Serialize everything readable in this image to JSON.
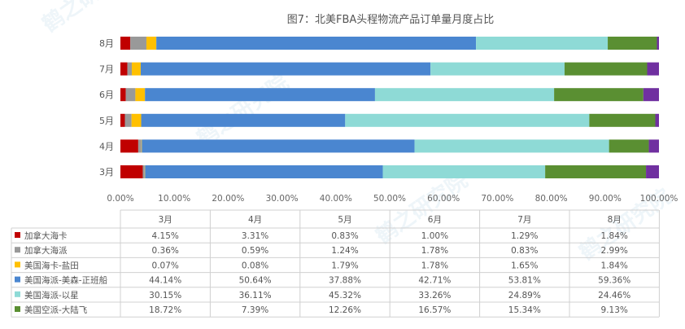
{
  "chart_data": {
    "type": "bar",
    "orientation": "horizontal",
    "stacked": true,
    "title": "图7：北美FBA头程物流产品订单量月度占比",
    "categories": [
      "3月",
      "4月",
      "5月",
      "6月",
      "7月",
      "8月"
    ],
    "xlim": [
      0,
      100
    ],
    "x_ticks": [
      "0.00%",
      "10.00%",
      "20.00%",
      "30.00%",
      "40.00%",
      "50.00%",
      "60.00%",
      "70.00%",
      "80.00%",
      "90.00%",
      "100.00%"
    ],
    "grid": false,
    "legend_position": "table-below",
    "series": [
      {
        "name": "加拿大海卡",
        "color": "#c00000",
        "values": [
          4.15,
          3.31,
          0.83,
          1.0,
          1.29,
          1.84
        ],
        "labels": [
          "4.15%",
          "3.31%",
          "0.83%",
          "1.00%",
          "1.29%",
          "1.84%"
        ]
      },
      {
        "name": "加拿大海派",
        "color": "#999999",
        "values": [
          0.36,
          0.59,
          1.24,
          1.78,
          0.83,
          2.99
        ],
        "labels": [
          "0.36%",
          "0.59%",
          "1.24%",
          "1.78%",
          "0.83%",
          "2.99%"
        ]
      },
      {
        "name": "美国海卡-盐田",
        "color": "#ffc000",
        "values": [
          0.07,
          0.08,
          1.79,
          1.78,
          1.65,
          1.84
        ],
        "labels": [
          "0.07%",
          "0.08%",
          "1.79%",
          "1.78%",
          "1.65%",
          "1.84%"
        ]
      },
      {
        "name": "美国海派-美森-正班船",
        "color": "#4a86d0",
        "values": [
          44.14,
          50.64,
          37.88,
          42.71,
          53.81,
          59.36
        ],
        "labels": [
          "44.14%",
          "50.64%",
          "37.88%",
          "42.71%",
          "53.81%",
          "59.36%"
        ]
      },
      {
        "name": "美国海派-以星",
        "color": "#8edad6",
        "values": [
          30.15,
          36.11,
          45.32,
          33.26,
          24.89,
          24.46
        ],
        "labels": [
          "30.15%",
          "36.11%",
          "45.32%",
          "33.26%",
          "24.89%",
          "24.46%"
        ]
      },
      {
        "name": "美国空派-大陆飞",
        "color": "#5a8f32",
        "values": [
          18.72,
          7.39,
          12.26,
          16.57,
          15.34,
          9.13
        ],
        "labels": [
          "18.72%",
          "7.39%",
          "12.26%",
          "16.57%",
          "15.34%",
          "9.13%"
        ]
      },
      {
        "name": "",
        "color": "#7030a0",
        "values": [
          2.41,
          1.88,
          0.68,
          2.9,
          2.19,
          0.38
        ]
      }
    ]
  },
  "watermarks": [
    "鹤之研究院",
    "鹤之研究院",
    "鹤之研究院",
    "鹤之研究院"
  ]
}
